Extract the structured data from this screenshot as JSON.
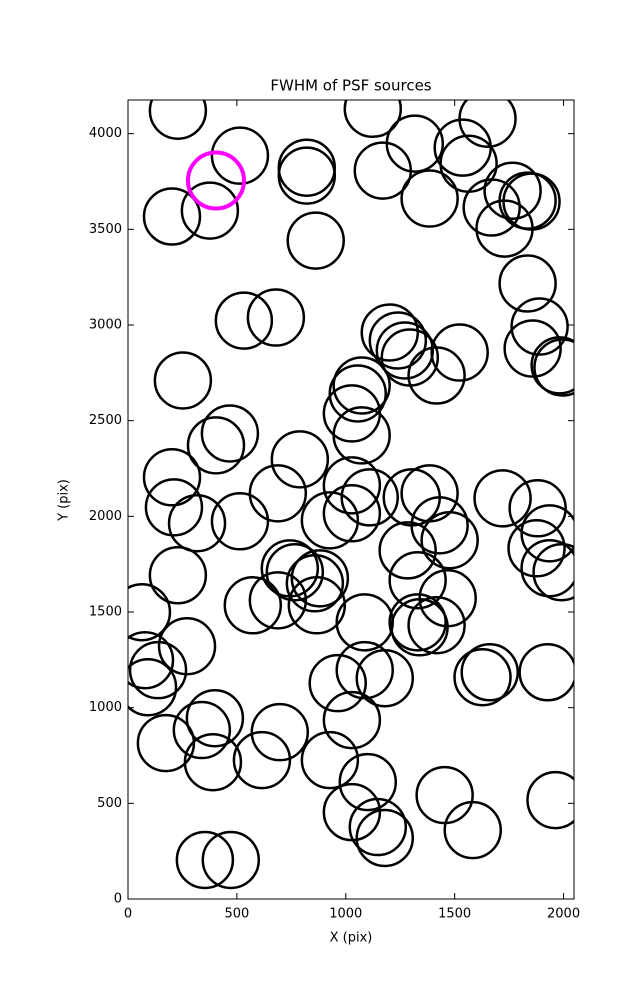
{
  "chart_data": {
    "type": "scatter",
    "title": "FWHM of PSF sources",
    "x_label": "X (pix)",
    "y_label": "Y (pix)",
    "series": [
      {
        "color": "#000000",
        "x": [
          229,
          514,
          202,
          376,
          821,
          821,
          862,
          1124,
          1317,
          1170,
          1385,
          1537,
          1564,
          1651,
          1766,
          1670,
          1729,
          1835,
          1853,
          1835,
          1890,
          1858,
          1982,
          1995,
          532,
          679,
          252,
          1202,
          1239,
          1271,
          1294,
          1523,
          1417,
          1073,
          1055,
          1028,
          1073,
          468,
          404,
          789,
          202,
          211,
          317,
          514,
          688,
          1028,
          1110,
          927,
          1028,
          1303,
          1385,
          1431,
          1477,
          1284,
          1330,
          1468,
          1720,
          1881,
          1936,
          1876,
          1936,
          1991,
          229,
          64,
          271,
          78,
          138,
          92,
          573,
          688,
          743,
          766,
          881,
          858,
          867,
          1087,
          1330,
          1339,
          1417,
          1628,
          1661,
          1927,
          963,
          1087,
          1179,
          399,
          339,
          174,
          390,
          615,
          697,
          927,
          1028,
          1101,
          1028,
          1147,
          1179,
          1454,
          1583,
          1963,
          353,
          472
        ],
        "values": [
          4120,
          3885,
          3567,
          3598,
          3822,
          3781,
          3441,
          4130,
          3948,
          3807,
          3661,
          3927,
          3843,
          4078,
          3702,
          3614,
          3504,
          3650,
          3645,
          3217,
          2992,
          2877,
          2789,
          2778,
          3023,
          3039,
          2710,
          2961,
          2919,
          2867,
          2830,
          2856,
          2736,
          2684,
          2642,
          2538,
          2423,
          2433,
          2371,
          2298,
          2204,
          2047,
          1964,
          1974,
          2120,
          2162,
          2099,
          1979,
          2016,
          2099,
          2120,
          1953,
          1875,
          1822,
          1666,
          1572,
          2094,
          2042,
          1911,
          1833,
          1729,
          1708,
          1692,
          1499,
          1321,
          1248,
          1196,
          1107,
          1535,
          1561,
          1728,
          1708,
          1676,
          1650,
          1535,
          1446,
          1446,
          1420,
          1431,
          1159,
          1185,
          1185,
          1128,
          1196,
          1154,
          945,
          883,
          815,
          715,
          726,
          872,
          726,
          935,
          611,
          454,
          376,
          319,
          543,
          360,
          517,
          204,
          204
        ]
      },
      {
        "color": "#ff00ff",
        "x": [
          404
        ],
        "values": [
          3755
        ]
      }
    ],
    "xlim": [
      0,
      2048
    ],
    "ylim": [
      0,
      4176
    ],
    "xticks": [
      0,
      500,
      1000,
      1500,
      2000
    ],
    "yticks": [
      0,
      500,
      1000,
      1500,
      2000,
      2500,
      3000,
      3500,
      4000
    ]
  }
}
